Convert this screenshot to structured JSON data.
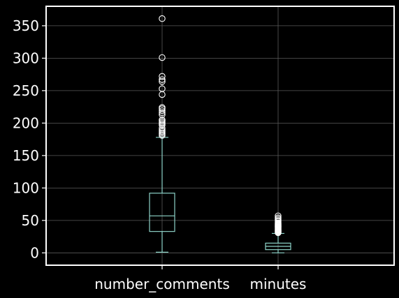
{
  "chart_data": {
    "type": "boxplot",
    "title": "",
    "xlabel": "",
    "ylabel": "",
    "ylim": [
      -19,
      380
    ],
    "yticks": [
      0,
      50,
      100,
      150,
      200,
      250,
      300,
      350
    ],
    "ytick_labels": [
      "0",
      "50",
      "100",
      "150",
      "200",
      "250",
      "300",
      "350"
    ],
    "grid": true,
    "categories": [
      "number_comments",
      "minutes"
    ],
    "boxes": [
      {
        "name": "number_comments",
        "whisker_low": 1,
        "q1": 33,
        "median": 57,
        "q3": 92,
        "whisker_high": 178,
        "outliers": [
          181,
          183,
          185,
          187,
          189,
          192,
          197,
          199,
          201,
          203,
          205,
          213,
          216,
          219,
          222,
          224,
          244,
          253,
          264,
          267,
          272,
          301,
          361
        ]
      },
      {
        "name": "minutes",
        "whisker_low": 0,
        "q1": 5,
        "median": 10,
        "q3": 15,
        "whisker_high": 30,
        "outliers": [
          31,
          32,
          33,
          34,
          35,
          36,
          37,
          38,
          39,
          40,
          41,
          42,
          43,
          44,
          45,
          46,
          48,
          50,
          52,
          54,
          57
        ]
      }
    ],
    "colors": {
      "background": "#000000",
      "box": "#8dd3c7",
      "median": "#8dd3c7",
      "grid": "#5a5a5a",
      "axes": "#ffffff",
      "text": "#ffffff",
      "outlier": "#ffffff"
    }
  }
}
